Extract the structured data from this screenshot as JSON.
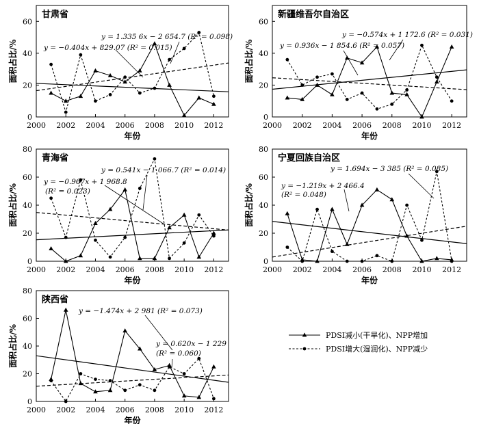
{
  "legend": {
    "dry_label": "PDSI减小(干旱化)、NPP增加",
    "wet_label": "PDSI增大(湿润化)、NPP减少"
  },
  "chart_data": [
    {
      "type": "line",
      "title": "甘肃省",
      "xlabel": "年份",
      "ylabel": "面积占比/%",
      "xlim": [
        2000,
        2013
      ],
      "ylim": [
        0,
        70
      ],
      "x_ticks": [
        "2000",
        "2002",
        "2004",
        "2006",
        "2008",
        "2010",
        "2012"
      ],
      "y_ticks": [
        "0",
        "20",
        "40",
        "60"
      ],
      "x": [
        2001,
        2002,
        2003,
        2004,
        2005,
        2006,
        2007,
        2008,
        2009,
        2010,
        2011,
        2012
      ],
      "series": [
        {
          "name": "PDSI减小(干旱化)、NPP增加",
          "values": [
            15,
            10,
            13,
            29,
            26,
            22,
            29,
            46,
            20,
            1,
            12,
            8
          ]
        },
        {
          "name": "PDSI增大(湿润化)、NPP减少",
          "values": [
            33,
            3,
            39,
            10,
            14,
            25,
            15,
            18,
            36,
            43,
            53,
            13
          ]
        }
      ],
      "trends": [
        {
          "series": 0,
          "slope": -0.404,
          "intercept": 829.07
        },
        {
          "series": 1,
          "slope": 1.3356,
          "intercept": -2654.7
        }
      ],
      "annotations": [
        "y = −0.404x + 829.07  (R² = 0.015)",
        "y = 1.335 6x − 2 654.7  (R² = 0.098)"
      ]
    },
    {
      "type": "line",
      "title": "新疆维吾尔自治区",
      "xlabel": "年份",
      "ylabel": "面积占比/%",
      "xlim": [
        2000,
        2013
      ],
      "ylim": [
        0,
        70
      ],
      "x_ticks": [
        "2000",
        "2002",
        "2004",
        "2006",
        "2008",
        "2010",
        "2012"
      ],
      "y_ticks": [
        "0",
        "20",
        "40",
        "60"
      ],
      "x": [
        2001,
        2002,
        2003,
        2004,
        2005,
        2006,
        2007,
        2008,
        2009,
        2010,
        2011,
        2012
      ],
      "series": [
        {
          "name": "PDSI减小(干旱化)、NPP增加",
          "values": [
            12,
            11,
            20,
            14,
            37,
            34,
            44,
            15,
            14,
            0,
            22,
            44
          ]
        },
        {
          "name": "PDSI增大(湿润化)、NPP减少",
          "values": [
            36,
            20,
            25,
            27,
            11,
            15,
            5,
            8,
            17,
            45,
            25,
            10
          ]
        }
      ],
      "trends": [
        {
          "series": 0,
          "slope": 0.936,
          "intercept": -1854.6
        },
        {
          "series": 1,
          "slope": -0.574,
          "intercept": 1172.6
        }
      ],
      "annotations": [
        "y = −0.574x + 1 172.6  (R² = 0.031)",
        "y = 0.936x − 1 854.6  (R² = 0.057)"
      ]
    },
    {
      "type": "line",
      "title": "青海省",
      "xlabel": "年份",
      "ylabel": "面积占比/%",
      "xlim": [
        2000,
        2013
      ],
      "ylim": [
        0,
        80
      ],
      "x_ticks": [
        "2000",
        "2002",
        "2004",
        "2006",
        "2008",
        "2010",
        "2012"
      ],
      "y_ticks": [
        "0",
        "20",
        "40",
        "60",
        "80"
      ],
      "x": [
        2001,
        2002,
        2003,
        2004,
        2005,
        2006,
        2007,
        2008,
        2009,
        2010,
        2011,
        2012
      ],
      "series": [
        {
          "name": "PDSI减小(干旱化)、NPP增加",
          "values": [
            9,
            0,
            4,
            27,
            37,
            51,
            2,
            2,
            24,
            33,
            3,
            20
          ]
        },
        {
          "name": "PDSI增大(湿润化)、NPP减少",
          "values": [
            45,
            17,
            58,
            15,
            3,
            17,
            52,
            73,
            2,
            13,
            33,
            18
          ]
        }
      ],
      "trends": [
        {
          "series": 0,
          "slope": 0.541,
          "intercept": -1066.7
        },
        {
          "series": 1,
          "slope": -0.967,
          "intercept": 1968.8
        }
      ],
      "annotations": [
        "y = −0.967x + 1 968.8",
        "(R² = 0.023)",
        "y = 0.541x − 1 066.7  (R² = 0.014)"
      ]
    },
    {
      "type": "line",
      "title": "宁夏回族自治区",
      "xlabel": "年份",
      "ylabel": "面积占比/%",
      "xlim": [
        2000,
        2013
      ],
      "ylim": [
        0,
        80
      ],
      "x_ticks": [
        "2000",
        "2002",
        "2004",
        "2006",
        "2008",
        "2010",
        "2012"
      ],
      "y_ticks": [
        "0",
        "20",
        "40",
        "60",
        "80"
      ],
      "x": [
        2001,
        2002,
        2003,
        2004,
        2005,
        2006,
        2007,
        2008,
        2009,
        2010,
        2011,
        2012
      ],
      "series": [
        {
          "name": "PDSI减小(干旱化)、NPP增加",
          "values": [
            34,
            1,
            0,
            37,
            12,
            40,
            51,
            44,
            18,
            0,
            2,
            1
          ]
        },
        {
          "name": "PDSI增大(湿润化)、NPP减少",
          "values": [
            10,
            0,
            37,
            7,
            0,
            0,
            4,
            0,
            40,
            15,
            64,
            0
          ]
        }
      ],
      "trends": [
        {
          "series": 0,
          "slope": -1.219,
          "intercept": 2466.4
        },
        {
          "series": 1,
          "slope": 1.694,
          "intercept": -3385
        }
      ],
      "annotations": [
        "y = 1.694x − 3 385  (R² = 0.085)",
        "y = −1.219x + 2 466.4",
        "(R² = 0.048)"
      ]
    },
    {
      "type": "line",
      "title": "陕西省",
      "xlabel": "年份",
      "ylabel": "面积占比/%",
      "xlim": [
        2000,
        2013
      ],
      "ylim": [
        0,
        80
      ],
      "x_ticks": [
        "2000",
        "2002",
        "2004",
        "2006",
        "2008",
        "2010",
        "2012"
      ],
      "y_ticks": [
        "0",
        "20",
        "40",
        "60",
        "80"
      ],
      "x": [
        2001,
        2002,
        2003,
        2004,
        2005,
        2006,
        2007,
        2008,
        2009,
        2010,
        2011,
        2012
      ],
      "series": [
        {
          "name": "PDSI减小(干旱化)、NPP增加",
          "values": [
            16,
            66,
            13,
            7,
            8,
            51,
            38,
            23,
            26,
            4,
            3,
            25
          ]
        },
        {
          "name": "PDSI增大(湿润化)、NPP减少",
          "values": [
            15,
            0,
            20,
            16,
            15,
            8,
            12,
            8,
            25,
            20,
            31,
            2
          ]
        }
      ],
      "trends": [
        {
          "series": 0,
          "slope": -1.474,
          "intercept": 2981
        },
        {
          "series": 1,
          "slope": 0.62,
          "intercept": -1229
        }
      ],
      "annotations": [
        "y = −1.474x + 2 981  (R² = 0.073)",
        "y = 0.620x − 1 229",
        "(R² = 0.060)"
      ]
    }
  ]
}
